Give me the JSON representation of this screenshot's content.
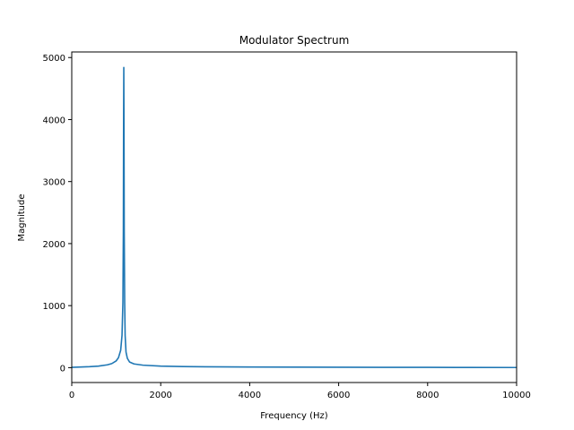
{
  "chart_data": {
    "type": "line",
    "title": "Modulator Spectrum",
    "xlabel": "Frequency (Hz)",
    "ylabel": "Magnitude",
    "xlim": [
      0,
      10000
    ],
    "ylim": [
      -240,
      5090
    ],
    "xticks": [
      0,
      2000,
      4000,
      6000,
      8000,
      10000
    ],
    "xtick_labels": [
      "0",
      "2000",
      "4000",
      "6000",
      "8000",
      "10000"
    ],
    "yticks": [
      0,
      1000,
      2000,
      3000,
      4000,
      5000
    ],
    "ytick_labels": [
      "0",
      "1000",
      "2000",
      "3000",
      "4000",
      "5000"
    ],
    "grid": false,
    "legend": "none",
    "series": [
      {
        "color": "#1f77b4",
        "x": [
          0,
          200,
          400,
          600,
          800,
          900,
          1000,
          1050,
          1100,
          1130,
          1150,
          1160,
          1165,
          1170,
          1175,
          1180,
          1190,
          1200,
          1220,
          1250,
          1300,
          1400,
          1600,
          2000,
          2500,
          3000,
          4000,
          5000,
          6000,
          7000,
          8000,
          9000,
          10000
        ],
        "y": [
          5,
          10,
          16,
          25,
          45,
          65,
          110,
          160,
          280,
          520,
          1050,
          2200,
          3800,
          4840,
          3800,
          2200,
          1050,
          520,
          250,
          150,
          90,
          60,
          40,
          25,
          18,
          14,
          10,
          8,
          6,
          5,
          4,
          3,
          2
        ]
      }
    ]
  }
}
